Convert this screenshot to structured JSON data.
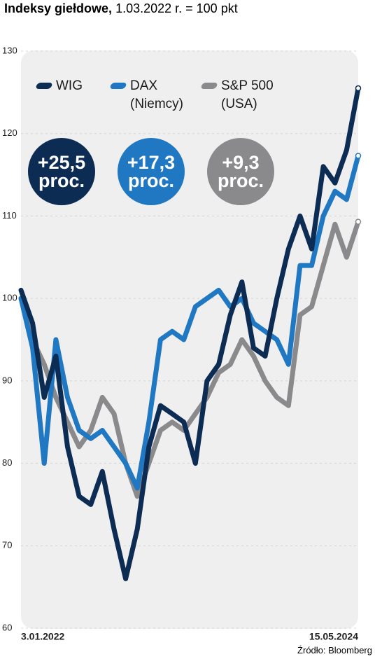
{
  "chart_data": {
    "type": "line",
    "title": "Indeksy giełdowe,",
    "subtitle": "1.03.2022 r. = 100 pkt",
    "source": "Źródło: Bloomberg",
    "categories": [
      "3.01.2022",
      null,
      null,
      null,
      null,
      null,
      null,
      null,
      null,
      null,
      null,
      null,
      null,
      null,
      null,
      null,
      null,
      null,
      null,
      null,
      null,
      null,
      null,
      null,
      null,
      null,
      null,
      null,
      null,
      "15.05.2024"
    ],
    "series": [
      {
        "name": "WIG",
        "color": "#0d2c54",
        "change": 25.5,
        "change_label": "+25,5 proc.",
        "values": [
          101,
          97,
          88,
          93,
          82,
          76,
          75,
          79,
          72,
          66,
          72,
          82,
          87,
          86,
          85,
          80,
          90,
          92,
          98,
          102,
          94,
          93,
          100,
          106,
          110,
          106,
          116,
          114,
          118,
          125.5
        ]
      },
      {
        "name": "DAX (Niemcy)",
        "color": "#1f78c1",
        "change": 17.3,
        "change_label": "+17,3 proc.",
        "values": [
          100,
          94,
          80,
          95,
          88,
          84,
          83,
          84,
          82,
          80,
          77,
          85,
          95,
          96,
          95,
          99,
          100,
          101,
          99,
          100,
          97,
          96,
          95,
          92,
          104,
          104,
          110,
          113,
          112,
          117.3
        ]
      },
      {
        "name": "S&P 500 (USA)",
        "color": "#8a8a8c",
        "change": 9.3,
        "change_label": "+9,3 proc.",
        "values": [
          100,
          95,
          92,
          88,
          85,
          82,
          84,
          88,
          86,
          80,
          76,
          80,
          84,
          85,
          84,
          86,
          88,
          91,
          92,
          95,
          93,
          90,
          88,
          87,
          98,
          99,
          104,
          109,
          105,
          109.3
        ]
      }
    ],
    "ylim": [
      60,
      130
    ],
    "yticks": [
      60,
      70,
      80,
      90,
      100,
      110,
      120,
      130
    ],
    "grid": true
  }
}
